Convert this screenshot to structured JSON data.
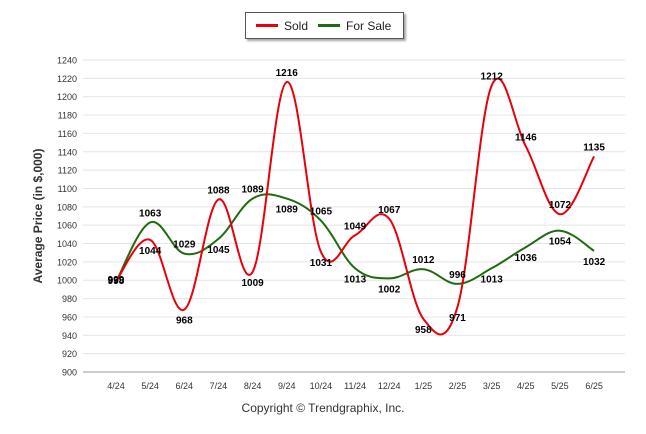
{
  "legend": {
    "sold_label": "Sold",
    "forsale_label": "For Sale"
  },
  "footer": {
    "copyright": "Copyright © Trendgraphix, Inc."
  },
  "chart_data": {
    "type": "line",
    "title": "",
    "xlabel": "",
    "ylabel": "Average Price (in $,000)",
    "ylim": [
      900,
      1240
    ],
    "yticks": [
      900,
      920,
      940,
      960,
      980,
      1000,
      1020,
      1040,
      1060,
      1080,
      1100,
      1120,
      1140,
      1160,
      1180,
      1200,
      1220,
      1240
    ],
    "grid": true,
    "legend_position": "top-center",
    "categories": [
      "4/24",
      "5/24",
      "6/24",
      "7/24",
      "8/24",
      "9/24",
      "10/24",
      "11/24",
      "12/24",
      "1/25",
      "2/25",
      "3/25",
      "4/25",
      "5/25",
      "6/25"
    ],
    "series": [
      {
        "name": "Sold",
        "color": "#e8000b",
        "values": [
          999,
          1044,
          968,
          1088,
          1009,
          1216,
          1031,
          1049,
          1067,
          958,
          971,
          1212,
          1146,
          1072,
          1135
        ]
      },
      {
        "name": "For Sale",
        "color": "#1e6b10",
        "values": [
          998,
          1063,
          1029,
          1045,
          1089,
          1089,
          1065,
          1013,
          1002,
          1012,
          996,
          1013,
          1036,
          1054,
          1032
        ]
      }
    ],
    "data_labels": {
      "Sold": [
        "999",
        "1044",
        "968",
        "1088",
        "1009",
        "1216",
        "1031",
        "1049",
        "1067",
        "958",
        "971",
        "1212",
        "1146",
        "1072",
        "1135"
      ],
      "For Sale": [
        "998",
        "1063",
        "1029",
        "1045",
        "1089",
        "1089",
        "1065",
        "1013",
        "1002",
        "1012",
        "996",
        "1013",
        "1036",
        "1054",
        "1032"
      ]
    }
  }
}
